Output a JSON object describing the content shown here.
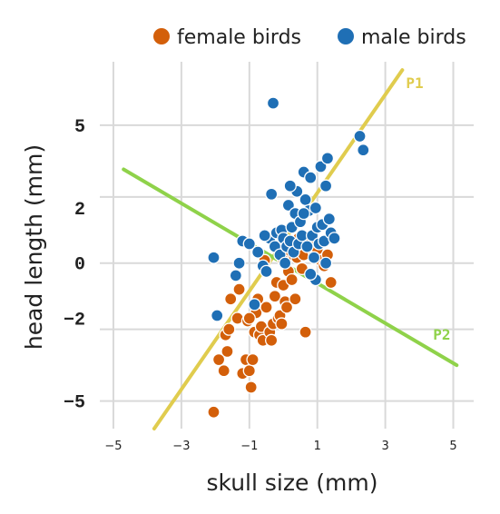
{
  "chart_data": {
    "type": "scatter",
    "xlabel": "skull size (mm)",
    "ylabel": "head length (mm)",
    "xlim": [
      -5.4,
      5.6
    ],
    "ylim": [
      -6.0,
      7.3
    ],
    "x_ticks": [
      {
        "value": -5,
        "label": "−5"
      },
      {
        "value": -3,
        "label": "−3"
      },
      {
        "value": -1,
        "label": "−1"
      },
      {
        "value": 1,
        "label": "1"
      },
      {
        "value": 3,
        "label": "3"
      },
      {
        "value": 5,
        "label": "5"
      }
    ],
    "y_ticks": [
      {
        "value": 5,
        "label": "5",
        "grid": 5.0
      },
      {
        "value": 2,
        "label": "2",
        "grid": 2.4
      },
      {
        "value": 0,
        "label": "0",
        "grid": 0.0
      },
      {
        "value": -2,
        "label": "−2",
        "grid": -2.4
      },
      {
        "value": -5,
        "label": "−5",
        "grid": -5.0
      }
    ],
    "legend": {
      "position": "top-right"
    },
    "series": [
      {
        "name": "female birds",
        "color": "#d35f0a",
        "points": [
          [
            -2.05,
            -5.4
          ],
          [
            -1.9,
            -3.5
          ],
          [
            -1.75,
            -3.9
          ],
          [
            -1.7,
            -2.6
          ],
          [
            -1.65,
            -3.2
          ],
          [
            -1.6,
            -2.4
          ],
          [
            -1.55,
            -1.3
          ],
          [
            -1.35,
            -2.0
          ],
          [
            -1.3,
            -0.95
          ],
          [
            -1.2,
            -4.0
          ],
          [
            -1.1,
            -3.5
          ],
          [
            -1.05,
            -2.1
          ],
          [
            -1.0,
            -3.9
          ],
          [
            -0.95,
            -4.5
          ],
          [
            -0.9,
            -3.5
          ],
          [
            -0.85,
            -2.5
          ],
          [
            -0.8,
            -1.8
          ],
          [
            -0.7,
            -2.6
          ],
          [
            -0.65,
            -2.3
          ],
          [
            -0.6,
            -2.8
          ],
          [
            -0.5,
            -1.6
          ],
          [
            -0.4,
            -2.5
          ],
          [
            -0.35,
            -2.8
          ],
          [
            -0.3,
            -2.2
          ],
          [
            -0.25,
            -1.2
          ],
          [
            -0.2,
            -0.7
          ],
          [
            -0.15,
            -2.0
          ],
          [
            -0.1,
            -1.9
          ],
          [
            -0.05,
            -2.2
          ],
          [
            0.0,
            -0.8
          ],
          [
            0.05,
            -1.4
          ],
          [
            0.1,
            -1.6
          ],
          [
            0.15,
            -0.3
          ],
          [
            0.2,
            0.3
          ],
          [
            0.25,
            -0.6
          ],
          [
            0.3,
            0.6
          ],
          [
            0.4,
            0.2
          ],
          [
            0.45,
            0.9
          ],
          [
            0.5,
            0.5
          ],
          [
            0.55,
            -0.2
          ],
          [
            0.6,
            0.3
          ],
          [
            0.65,
            -2.5
          ],
          [
            0.7,
            0.8
          ],
          [
            0.8,
            0.9
          ],
          [
            0.9,
            0.4
          ],
          [
            1.0,
            0.5
          ],
          [
            1.1,
            0.1
          ],
          [
            1.2,
            -0.1
          ],
          [
            1.3,
            0.3
          ],
          [
            1.4,
            -0.7
          ],
          [
            -0.55,
            0.1
          ],
          [
            0.0,
            0.1
          ],
          [
            0.35,
            -1.3
          ],
          [
            -1.0,
            -2.0
          ],
          [
            -0.75,
            -1.3
          ]
        ]
      },
      {
        "name": "male birds",
        "color": "#1f6fb5",
        "points": [
          [
            -2.05,
            0.2
          ],
          [
            -1.95,
            -1.9
          ],
          [
            -1.4,
            -0.45
          ],
          [
            -1.3,
            0.0
          ],
          [
            -1.2,
            0.8
          ],
          [
            -1.0,
            0.7
          ],
          [
            -0.85,
            -1.5
          ],
          [
            -0.75,
            0.4
          ],
          [
            -0.6,
            -0.1
          ],
          [
            -0.5,
            -0.3
          ],
          [
            -0.4,
            0.9
          ],
          [
            -0.35,
            2.5
          ],
          [
            -0.3,
            5.8
          ],
          [
            -0.25,
            0.6
          ],
          [
            -0.2,
            1.1
          ],
          [
            -0.1,
            0.3
          ],
          [
            -0.05,
            1.2
          ],
          [
            0.0,
            0.9
          ],
          [
            0.05,
            0.0
          ],
          [
            0.1,
            0.6
          ],
          [
            0.15,
            2.1
          ],
          [
            0.2,
            0.8
          ],
          [
            0.25,
            1.3
          ],
          [
            0.3,
            0.4
          ],
          [
            0.35,
            1.8
          ],
          [
            0.4,
            2.6
          ],
          [
            0.45,
            0.7
          ],
          [
            0.5,
            1.5
          ],
          [
            0.55,
            1.0
          ],
          [
            0.6,
            3.3
          ],
          [
            0.65,
            2.3
          ],
          [
            0.7,
            0.6
          ],
          [
            0.75,
            1.9
          ],
          [
            0.8,
            3.1
          ],
          [
            0.85,
            1.0
          ],
          [
            0.9,
            0.2
          ],
          [
            0.95,
            2.0
          ],
          [
            1.0,
            1.3
          ],
          [
            1.05,
            0.7
          ],
          [
            1.1,
            3.5
          ],
          [
            1.15,
            1.4
          ],
          [
            1.2,
            0.8
          ],
          [
            1.25,
            2.8
          ],
          [
            1.3,
            3.8
          ],
          [
            1.35,
            1.6
          ],
          [
            1.4,
            1.1
          ],
          [
            1.5,
            0.9
          ],
          [
            2.25,
            4.6
          ],
          [
            2.35,
            4.1
          ],
          [
            0.95,
            -0.6
          ],
          [
            0.8,
            -0.4
          ],
          [
            1.25,
            0.0
          ],
          [
            0.6,
            1.8
          ],
          [
            -0.55,
            1.0
          ],
          [
            0.2,
            2.8
          ]
        ]
      }
    ],
    "lines": [
      {
        "name": "P1",
        "label": "P1",
        "color": "#e0cc4e",
        "from": [
          -3.8,
          -6.0
        ],
        "to": [
          3.5,
          7.0
        ]
      },
      {
        "name": "P2",
        "label": "P2",
        "color": "#8fd24a",
        "from": [
          -4.7,
          3.4
        ],
        "to": [
          5.1,
          -3.7
        ]
      }
    ]
  }
}
